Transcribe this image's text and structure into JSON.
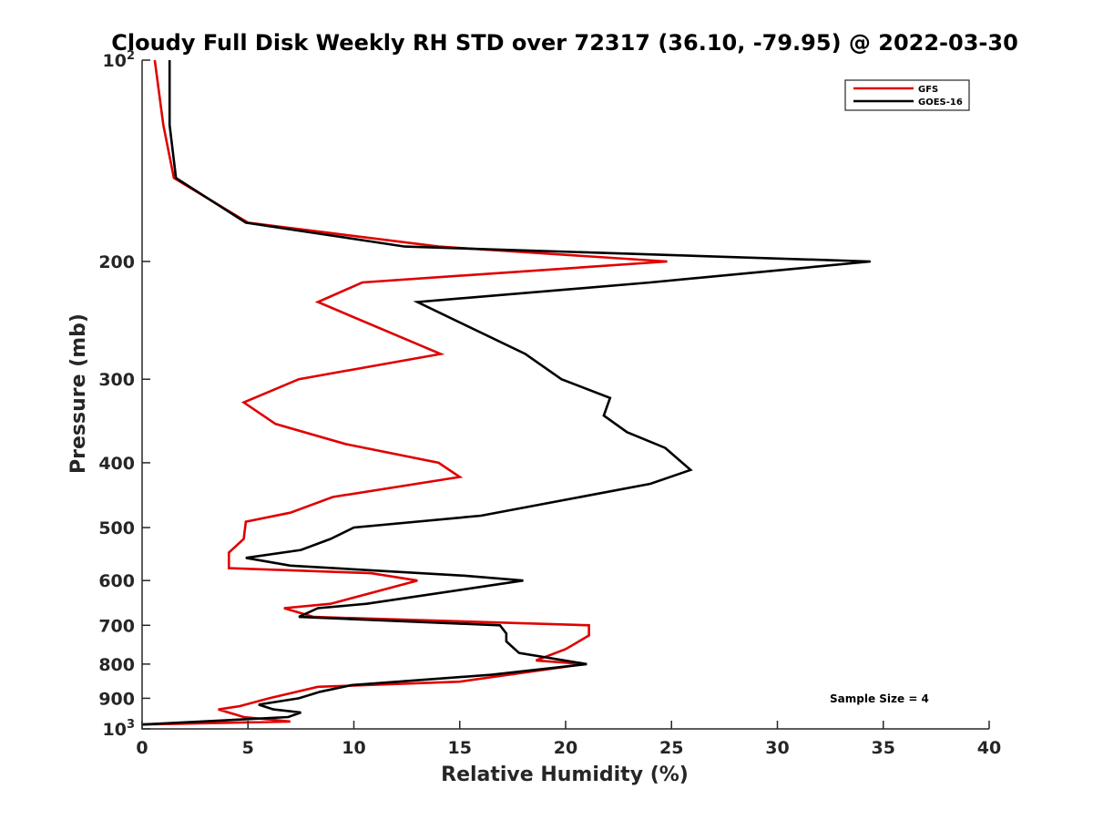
{
  "chart_data": {
    "type": "line",
    "title": "Cloudy Full Disk Weekly RH STD over 72317 (36.10, -79.95) @ 2022-03-30",
    "xlabel": "Relative Humidity (%)",
    "ylabel": "Pressure (mb)",
    "xlim": [
      0,
      40
    ],
    "ylim": [
      100,
      1000
    ],
    "yscale": "log",
    "yreversed": true,
    "xticks": [
      "0",
      "5",
      "10",
      "15",
      "20",
      "25",
      "30",
      "35",
      "40"
    ],
    "yticks": [
      {
        "value": 100,
        "base": "10",
        "exp": "2"
      },
      {
        "value": 200,
        "label": "200"
      },
      {
        "value": 300,
        "label": "300"
      },
      {
        "value": 400,
        "label": "400"
      },
      {
        "value": 500,
        "label": "500"
      },
      {
        "value": 600,
        "label": "600"
      },
      {
        "value": 700,
        "label": "700"
      },
      {
        "value": 800,
        "label": "800"
      },
      {
        "value": 900,
        "label": "900"
      },
      {
        "value": 1000,
        "base": "10",
        "exp": "3"
      }
    ],
    "grid": false,
    "legend_position": "top-right",
    "annotation": "Sample Size = 4",
    "series": [
      {
        "name": "GFS",
        "color": "#e00000",
        "points": [
          [
            0.6,
            100
          ],
          [
            1.0,
            125
          ],
          [
            1.5,
            150
          ],
          [
            5.0,
            175
          ],
          [
            14.0,
            190
          ],
          [
            24.8,
            200
          ],
          [
            10.4,
            215
          ],
          [
            8.3,
            230
          ],
          [
            14.1,
            275
          ],
          [
            7.4,
            300
          ],
          [
            4.8,
            325
          ],
          [
            6.3,
            350
          ],
          [
            9.6,
            375
          ],
          [
            14.0,
            400
          ],
          [
            15.0,
            420
          ],
          [
            9.0,
            450
          ],
          [
            7.0,
            475
          ],
          [
            4.9,
            490
          ],
          [
            4.8,
            520
          ],
          [
            4.1,
            545
          ],
          [
            4.1,
            575
          ],
          [
            10.8,
            585
          ],
          [
            13.0,
            600
          ],
          [
            8.9,
            650
          ],
          [
            6.7,
            660
          ],
          [
            8.1,
            680
          ],
          [
            21.1,
            700
          ],
          [
            21.1,
            725
          ],
          [
            20.0,
            760
          ],
          [
            18.6,
            790
          ],
          [
            20.9,
            800
          ],
          [
            15.0,
            850
          ],
          [
            8.3,
            865
          ],
          [
            6.0,
            900
          ],
          [
            4.6,
            925
          ],
          [
            3.6,
            935
          ],
          [
            4.8,
            960
          ],
          [
            7.0,
            975
          ],
          [
            0.0,
            985
          ]
        ]
      },
      {
        "name": "GOES-16",
        "color": "#000000",
        "points": [
          [
            1.3,
            100
          ],
          [
            1.3,
            125
          ],
          [
            1.6,
            150
          ],
          [
            4.9,
            175
          ],
          [
            12.4,
            190
          ],
          [
            34.4,
            200
          ],
          [
            24.0,
            215
          ],
          [
            13.0,
            230
          ],
          [
            18.1,
            275
          ],
          [
            18.8,
            285
          ],
          [
            19.8,
            300
          ],
          [
            22.1,
            320
          ],
          [
            21.8,
            340
          ],
          [
            22.9,
            360
          ],
          [
            24.7,
            380
          ],
          [
            25.9,
            410
          ],
          [
            24.0,
            430
          ],
          [
            16.0,
            480
          ],
          [
            10.0,
            500
          ],
          [
            8.9,
            520
          ],
          [
            7.5,
            540
          ],
          [
            4.9,
            555
          ],
          [
            7.0,
            570
          ],
          [
            15.2,
            590
          ],
          [
            18.0,
            600
          ],
          [
            10.6,
            650
          ],
          [
            8.3,
            660
          ],
          [
            7.4,
            680
          ],
          [
            16.9,
            700
          ],
          [
            17.2,
            720
          ],
          [
            17.2,
            740
          ],
          [
            17.8,
            770
          ],
          [
            21.0,
            800
          ],
          [
            16.5,
            830
          ],
          [
            9.9,
            860
          ],
          [
            8.4,
            880
          ],
          [
            7.4,
            900
          ],
          [
            5.5,
            920
          ],
          [
            6.2,
            935
          ],
          [
            7.5,
            945
          ],
          [
            6.9,
            960
          ],
          [
            0.0,
            985
          ]
        ]
      }
    ]
  }
}
